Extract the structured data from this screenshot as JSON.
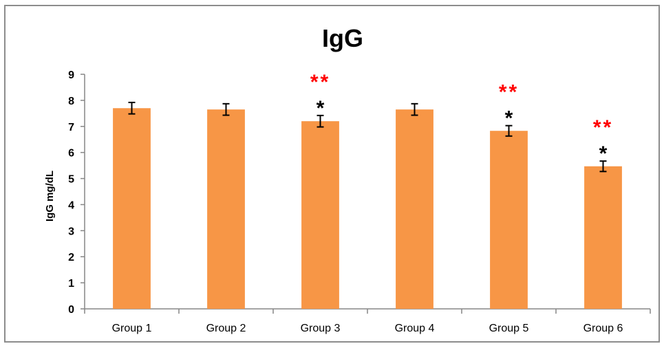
{
  "chart_data": {
    "type": "bar",
    "title": "IgG",
    "xlabel": "",
    "ylabel": "IgG mg/dL",
    "ylim": [
      0,
      9
    ],
    "yticks": [
      0,
      1,
      2,
      3,
      4,
      5,
      6,
      7,
      8,
      9
    ],
    "grid": false,
    "categories": [
      "Group 1",
      "Group 2",
      "Group 3",
      "Group 4",
      "Group 5",
      "Group 6"
    ],
    "values": [
      7.7,
      7.65,
      7.2,
      7.65,
      6.83,
      5.47
    ],
    "errors": [
      0.22,
      0.22,
      0.22,
      0.22,
      0.2,
      0.2
    ],
    "bar_color": "#f79646",
    "annotations": [
      {
        "category": "Group 3",
        "red": "**",
        "black": "*"
      },
      {
        "category": "Group 5",
        "red": "**",
        "black": "*"
      },
      {
        "category": "Group 6",
        "red": "**",
        "black": "*"
      }
    ],
    "annotation_colors": {
      "red": "#ff0000",
      "black": "#000000"
    }
  }
}
